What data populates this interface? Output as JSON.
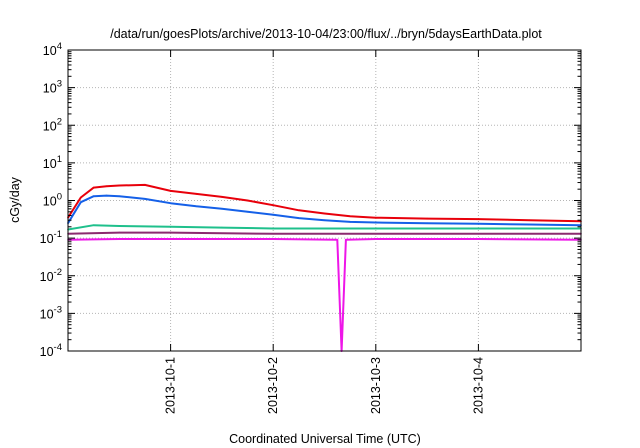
{
  "chart_data": {
    "type": "line",
    "title": "/data/run/goesPlots/archive/2013-10-04/23:00/flux/../bryn/5daysEarthData.plot",
    "xlabel": "Coordinated Universal Time (UTC)",
    "ylabel": "cGy/day",
    "y_scale": "log",
    "ylim": [
      0.0001,
      10000
    ],
    "xlim": [
      "2013-09-30 00:00",
      "2013-10-05 00:00"
    ],
    "grid": true,
    "legend": "none",
    "x_ticks": [
      "2013-10-1",
      "2013-10-2",
      "2013-10-3",
      "2013-10-4"
    ],
    "x_tick_values": [
      "2013-10-01 00:00",
      "2013-10-02 00:00",
      "2013-10-03 00:00",
      "2013-10-04 00:00"
    ],
    "y_ticks": [
      {
        "base": "10",
        "exp": "4",
        "value": 10000
      },
      {
        "base": "10",
        "exp": "3",
        "value": 1000
      },
      {
        "base": "10",
        "exp": "2",
        "value": 100
      },
      {
        "base": "10",
        "exp": "1",
        "value": 10
      },
      {
        "base": "10",
        "exp": "0",
        "value": 1
      },
      {
        "base": "10",
        "exp": "-1",
        "value": 0.1
      },
      {
        "base": "10",
        "exp": "-2",
        "value": 0.01
      },
      {
        "base": "10",
        "exp": "-3",
        "value": 0.001
      },
      {
        "base": "10",
        "exp": "-4",
        "value": 0.0001
      }
    ],
    "series": [
      {
        "color": "#e8000b",
        "x": [
          "2013-09-30 00:00",
          "2013-09-30 03:00",
          "2013-09-30 06:00",
          "2013-09-30 09:00",
          "2013-09-30 12:00",
          "2013-09-30 18:00",
          "2013-10-01 00:00",
          "2013-10-01 06:00",
          "2013-10-01 12:00",
          "2013-10-01 18:00",
          "2013-10-02 00:00",
          "2013-10-02 06:00",
          "2013-10-02 12:00",
          "2013-10-02 18:00",
          "2013-10-03 00:00",
          "2013-10-03 12:00",
          "2013-10-04 00:00",
          "2013-10-04 12:00",
          "2013-10-05 00:00"
        ],
        "values": [
          0.35,
          1.2,
          2.2,
          2.4,
          2.5,
          2.6,
          1.8,
          1.5,
          1.25,
          1.0,
          0.75,
          0.55,
          0.45,
          0.38,
          0.35,
          0.33,
          0.32,
          0.3,
          0.28
        ]
      },
      {
        "color": "#1560e8",
        "x": [
          "2013-09-30 00:00",
          "2013-09-30 03:00",
          "2013-09-30 06:00",
          "2013-09-30 09:00",
          "2013-09-30 12:00",
          "2013-09-30 18:00",
          "2013-10-01 00:00",
          "2013-10-01 06:00",
          "2013-10-01 12:00",
          "2013-10-01 18:00",
          "2013-10-02 00:00",
          "2013-10-02 06:00",
          "2013-10-02 12:00",
          "2013-10-02 18:00",
          "2013-10-03 00:00",
          "2013-10-03 12:00",
          "2013-10-04 00:00",
          "2013-10-04 12:00",
          "2013-10-05 00:00"
        ],
        "values": [
          0.25,
          0.9,
          1.3,
          1.35,
          1.3,
          1.1,
          0.85,
          0.7,
          0.6,
          0.5,
          0.42,
          0.34,
          0.3,
          0.27,
          0.26,
          0.25,
          0.24,
          0.23,
          0.22
        ]
      },
      {
        "color": "#1fc08c",
        "x": [
          "2013-09-30 00:00",
          "2013-09-30 06:00",
          "2013-09-30 12:00",
          "2013-10-01 00:00",
          "2013-10-01 12:00",
          "2013-10-02 00:00",
          "2013-10-02 12:00",
          "2013-10-03 00:00",
          "2013-10-03 12:00",
          "2013-10-04 00:00",
          "2013-10-04 12:00",
          "2013-10-05 00:00"
        ],
        "values": [
          0.17,
          0.22,
          0.21,
          0.2,
          0.19,
          0.18,
          0.18,
          0.18,
          0.18,
          0.18,
          0.18,
          0.18
        ]
      },
      {
        "color": "#8b2a6f",
        "x": [
          "2013-09-30 00:00",
          "2013-09-30 12:00",
          "2013-10-01 00:00",
          "2013-10-02 00:00",
          "2013-10-03 00:00",
          "2013-10-04 00:00",
          "2013-10-05 00:00"
        ],
        "values": [
          0.13,
          0.14,
          0.14,
          0.13,
          0.13,
          0.13,
          0.13
        ]
      },
      {
        "color": "#ee16e8",
        "x": [
          "2013-09-30 00:00",
          "2013-09-30 12:00",
          "2013-10-01 00:00",
          "2013-10-02 00:00",
          "2013-10-02 15:00",
          "2013-10-02 16:00",
          "2013-10-02 17:00",
          "2013-10-03 00:00",
          "2013-10-04 00:00",
          "2013-10-05 00:00"
        ],
        "values": [
          0.09,
          0.095,
          0.095,
          0.095,
          0.09,
          0.0001,
          0.09,
          0.095,
          0.095,
          0.09
        ]
      }
    ]
  }
}
